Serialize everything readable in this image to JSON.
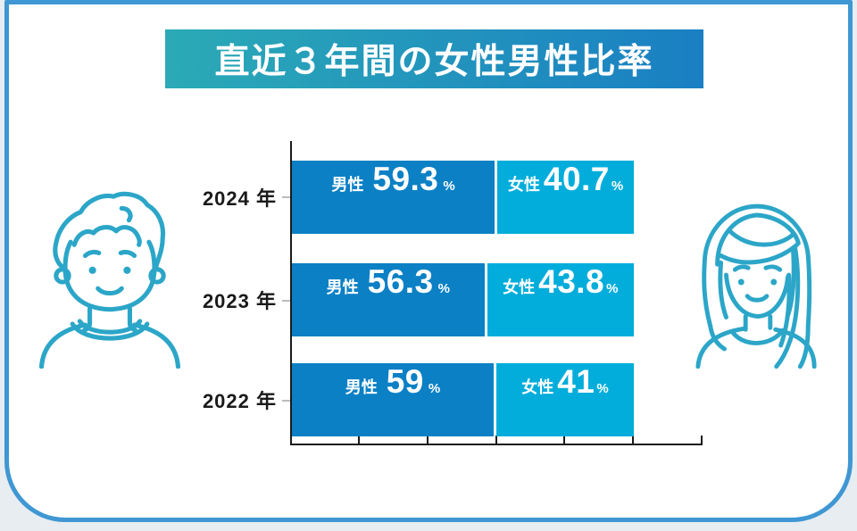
{
  "card": {
    "title": "直近３年間の女性男性比率"
  },
  "chart_data": {
    "type": "bar",
    "orientation": "horizontal",
    "stacked": true,
    "title": "直近３年間の女性男性比率",
    "categories": [
      "2024 年",
      "2023 年",
      "2022 年"
    ],
    "series": [
      {
        "name": "男性",
        "values": [
          59.3,
          56.3,
          59
        ],
        "color": "#0B80C5"
      },
      {
        "name": "女性",
        "values": [
          40.7,
          43.8,
          41
        ],
        "color": "#02ADDB"
      }
    ],
    "value_labels": {
      "male": [
        "59.3",
        "56.3",
        "59"
      ],
      "female": [
        "40.7",
        "43.8",
        "41"
      ]
    },
    "unit": "%",
    "xlim": [
      0,
      120
    ],
    "x_tick_step_percent": 20,
    "grid": false,
    "legend": "none"
  },
  "icons": {
    "male_avatar": "male-person-line-art",
    "female_avatar": "female-person-line-art"
  },
  "colors": {
    "male_bar": "#0B80C5",
    "female_bar": "#02ADDB",
    "title_gradient_start": "#2BAAB6",
    "title_gradient_end": "#1A7FC3",
    "card_border": "#3F97D3",
    "avatar_stroke": "#2CA6C8",
    "axis": "#1A1A1A",
    "bar_text": "#FFFFFF"
  }
}
